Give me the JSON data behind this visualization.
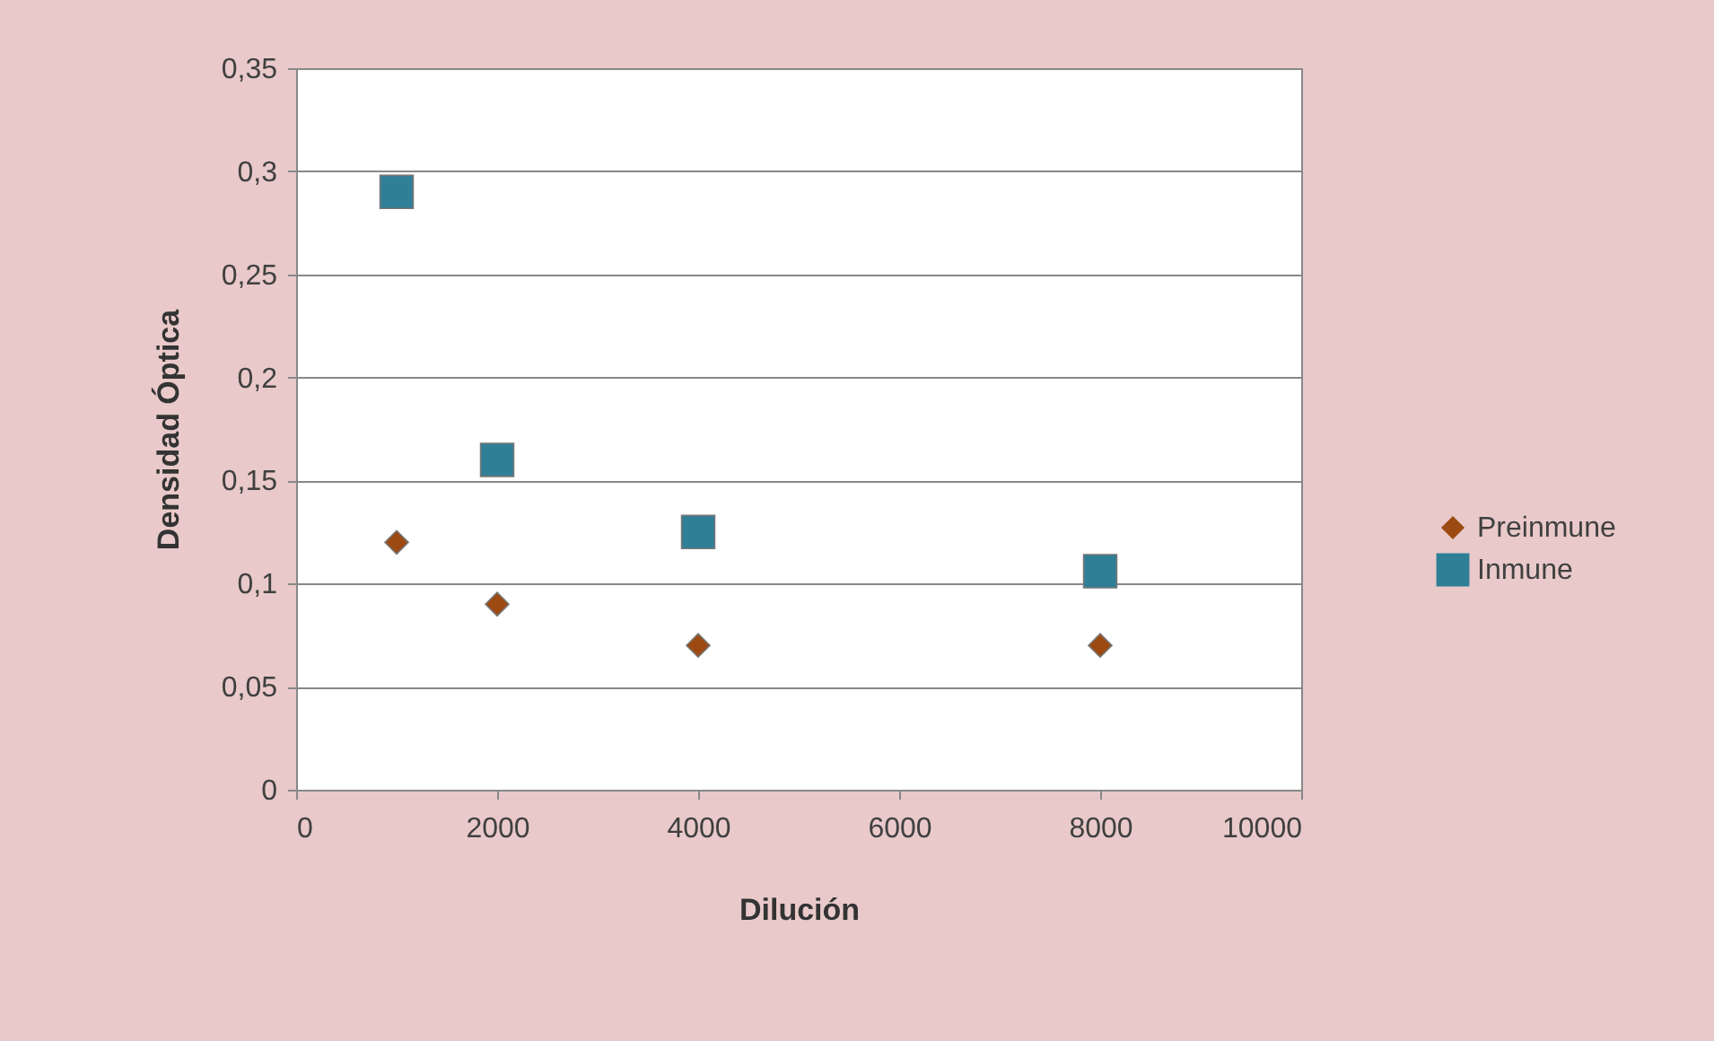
{
  "chart_data": {
    "type": "scatter",
    "xlabel": "Dilución",
    "ylabel": "Densidad Óptica",
    "x": [
      1000,
      2000,
      4000,
      8000
    ],
    "series": [
      {
        "name": "Preinmune",
        "color": "#9c4a12",
        "marker": "diamond",
        "values": [
          0.12,
          0.09,
          0.07,
          0.07
        ]
      },
      {
        "name": "Inmune",
        "color": "#2f7f96",
        "marker": "square",
        "values": [
          0.29,
          0.16,
          0.125,
          0.106
        ]
      }
    ],
    "xlim": [
      0,
      10000
    ],
    "xticks": [
      0,
      2000,
      4000,
      6000,
      8000,
      10000
    ],
    "ylim": [
      0,
      0.35
    ],
    "yticks": [
      0,
      {
        "value": 0.05,
        "label": "0,05"
      },
      {
        "value": 0.1,
        "label": "0,1"
      },
      {
        "value": 0.15,
        "label": "0,15"
      },
      {
        "value": 0.2,
        "label": "0,2"
      },
      {
        "value": 0.25,
        "label": "0,25"
      },
      {
        "value": 0.3,
        "label": "0,3"
      },
      {
        "value": 0.35,
        "label": "0,35"
      }
    ],
    "grid": "y",
    "legend": "right"
  }
}
